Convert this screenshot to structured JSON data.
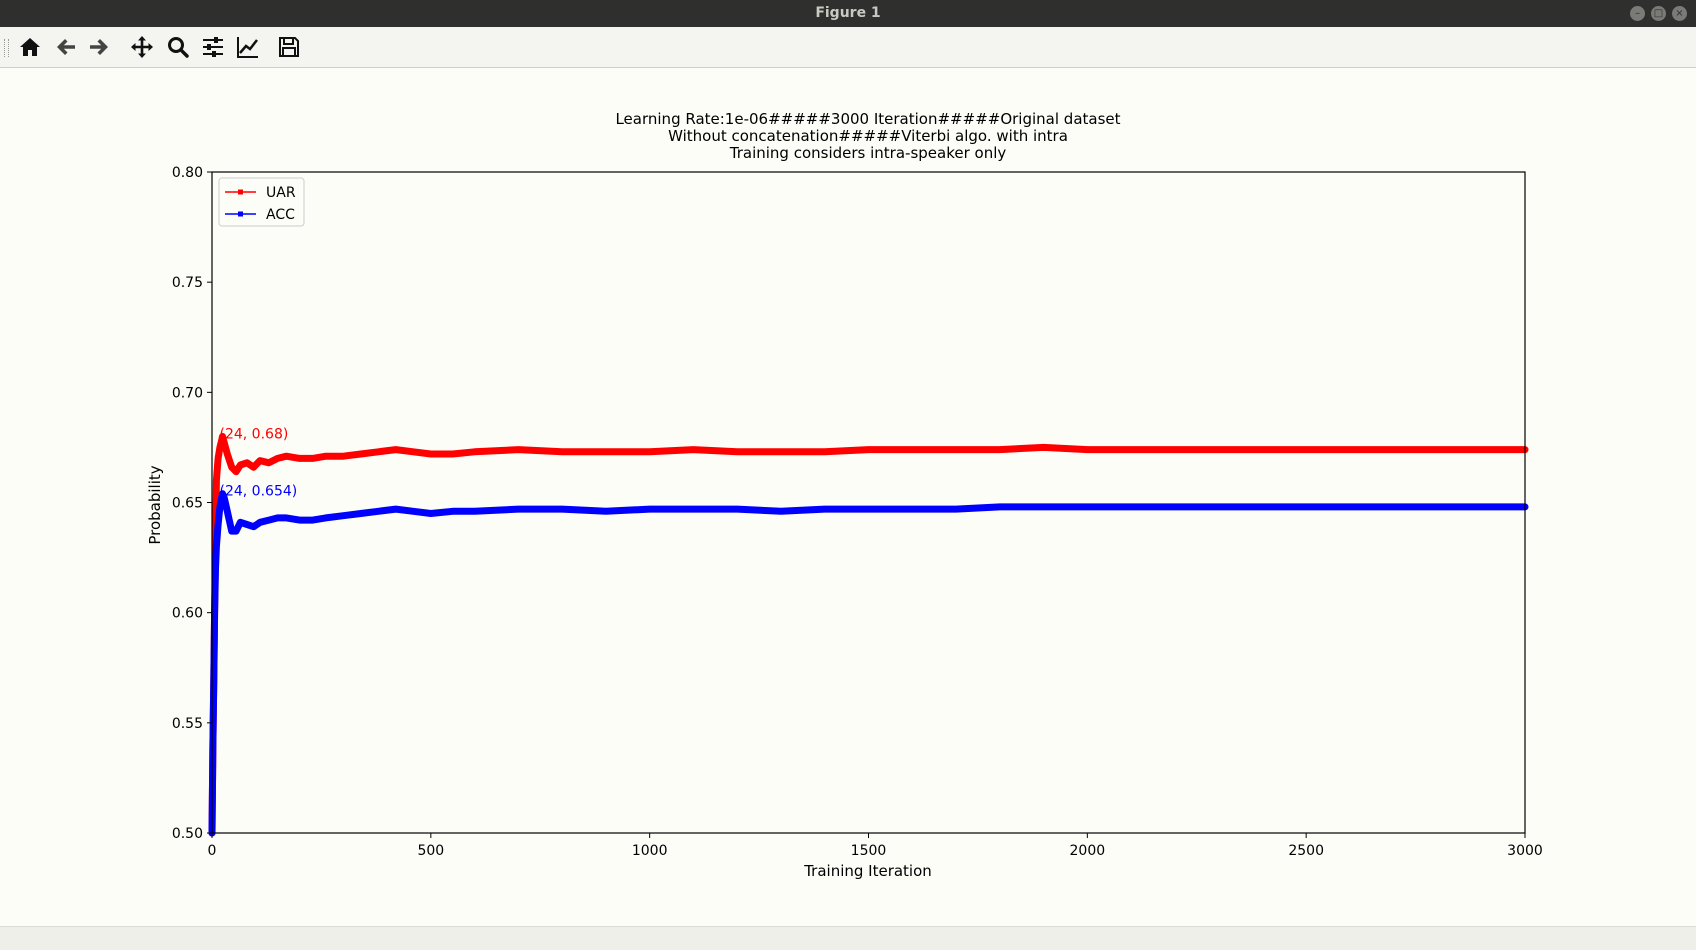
{
  "window": {
    "title": "Figure 1"
  },
  "toolbar": {
    "buttons": [
      {
        "name": "home-icon"
      },
      {
        "name": "back-arrow-icon"
      },
      {
        "name": "forward-arrow-icon"
      },
      {
        "name": "pan-move-icon"
      },
      {
        "name": "zoom-magnifier-icon"
      },
      {
        "name": "configure-subplots-icon"
      },
      {
        "name": "edit-axis-icon"
      },
      {
        "name": "save-floppy-icon"
      }
    ]
  },
  "chart_data": {
    "type": "line",
    "title_lines": [
      "Learning Rate:1e-06#####3000 Iteration#####Original dataset",
      "Without concatenation#####Viterbi algo. with intra",
      "Training considers intra-speaker only"
    ],
    "xlabel": "Training Iteration",
    "ylabel": "Probability",
    "xlim": [
      0,
      3000
    ],
    "ylim": [
      0.5,
      0.8
    ],
    "xticks": [
      "0",
      "500",
      "1000",
      "1500",
      "2000",
      "2500",
      "3000"
    ],
    "yticks": [
      "0.50",
      "0.55",
      "0.60",
      "0.65",
      "0.70",
      "0.75",
      "0.80"
    ],
    "grid": false,
    "legend_position": "top-left",
    "series": [
      {
        "name": "UAR",
        "color": "#ff0000",
        "x": [
          0,
          2,
          4,
          6,
          8,
          10,
          14,
          18,
          22,
          24,
          28,
          35,
          45,
          55,
          65,
          80,
          95,
          110,
          130,
          150,
          170,
          200,
          230,
          260,
          300,
          340,
          380,
          420,
          460,
          500,
          550,
          600,
          700,
          800,
          900,
          1000,
          1100,
          1200,
          1300,
          1400,
          1500,
          1600,
          1700,
          1800,
          1900,
          2000,
          2200,
          2400,
          2600,
          2800,
          3000
        ],
        "y": [
          0.5,
          0.54,
          0.57,
          0.6,
          0.63,
          0.66,
          0.67,
          0.675,
          0.678,
          0.68,
          0.677,
          0.672,
          0.666,
          0.664,
          0.667,
          0.668,
          0.666,
          0.669,
          0.668,
          0.67,
          0.671,
          0.67,
          0.67,
          0.671,
          0.671,
          0.672,
          0.673,
          0.674,
          0.673,
          0.672,
          0.672,
          0.673,
          0.674,
          0.673,
          0.673,
          0.673,
          0.674,
          0.673,
          0.673,
          0.673,
          0.674,
          0.674,
          0.674,
          0.674,
          0.675,
          0.674,
          0.674,
          0.674,
          0.674,
          0.674,
          0.674
        ],
        "annotation": {
          "x": 24,
          "y": 0.68,
          "text": "(24, 0.68)"
        }
      },
      {
        "name": "ACC",
        "color": "#0000ff",
        "x": [
          0,
          2,
          4,
          6,
          8,
          10,
          14,
          18,
          22,
          24,
          28,
          35,
          45,
          55,
          65,
          80,
          95,
          110,
          130,
          150,
          170,
          200,
          230,
          260,
          300,
          340,
          380,
          420,
          460,
          500,
          550,
          600,
          700,
          800,
          900,
          1000,
          1100,
          1200,
          1300,
          1400,
          1500,
          1600,
          1700,
          1800,
          1900,
          2000,
          2200,
          2400,
          2600,
          2800,
          3000
        ],
        "y": [
          0.5,
          0.54,
          0.57,
          0.6,
          0.62,
          0.63,
          0.64,
          0.648,
          0.652,
          0.654,
          0.652,
          0.646,
          0.637,
          0.637,
          0.641,
          0.64,
          0.639,
          0.641,
          0.642,
          0.643,
          0.643,
          0.642,
          0.642,
          0.643,
          0.644,
          0.645,
          0.646,
          0.647,
          0.646,
          0.645,
          0.646,
          0.646,
          0.647,
          0.647,
          0.646,
          0.647,
          0.647,
          0.647,
          0.646,
          0.647,
          0.647,
          0.647,
          0.647,
          0.648,
          0.648,
          0.648,
          0.648,
          0.648,
          0.648,
          0.648,
          0.648
        ],
        "annotation": {
          "x": 24,
          "y": 0.654,
          "text": "(24, 0.654)"
        }
      }
    ]
  }
}
